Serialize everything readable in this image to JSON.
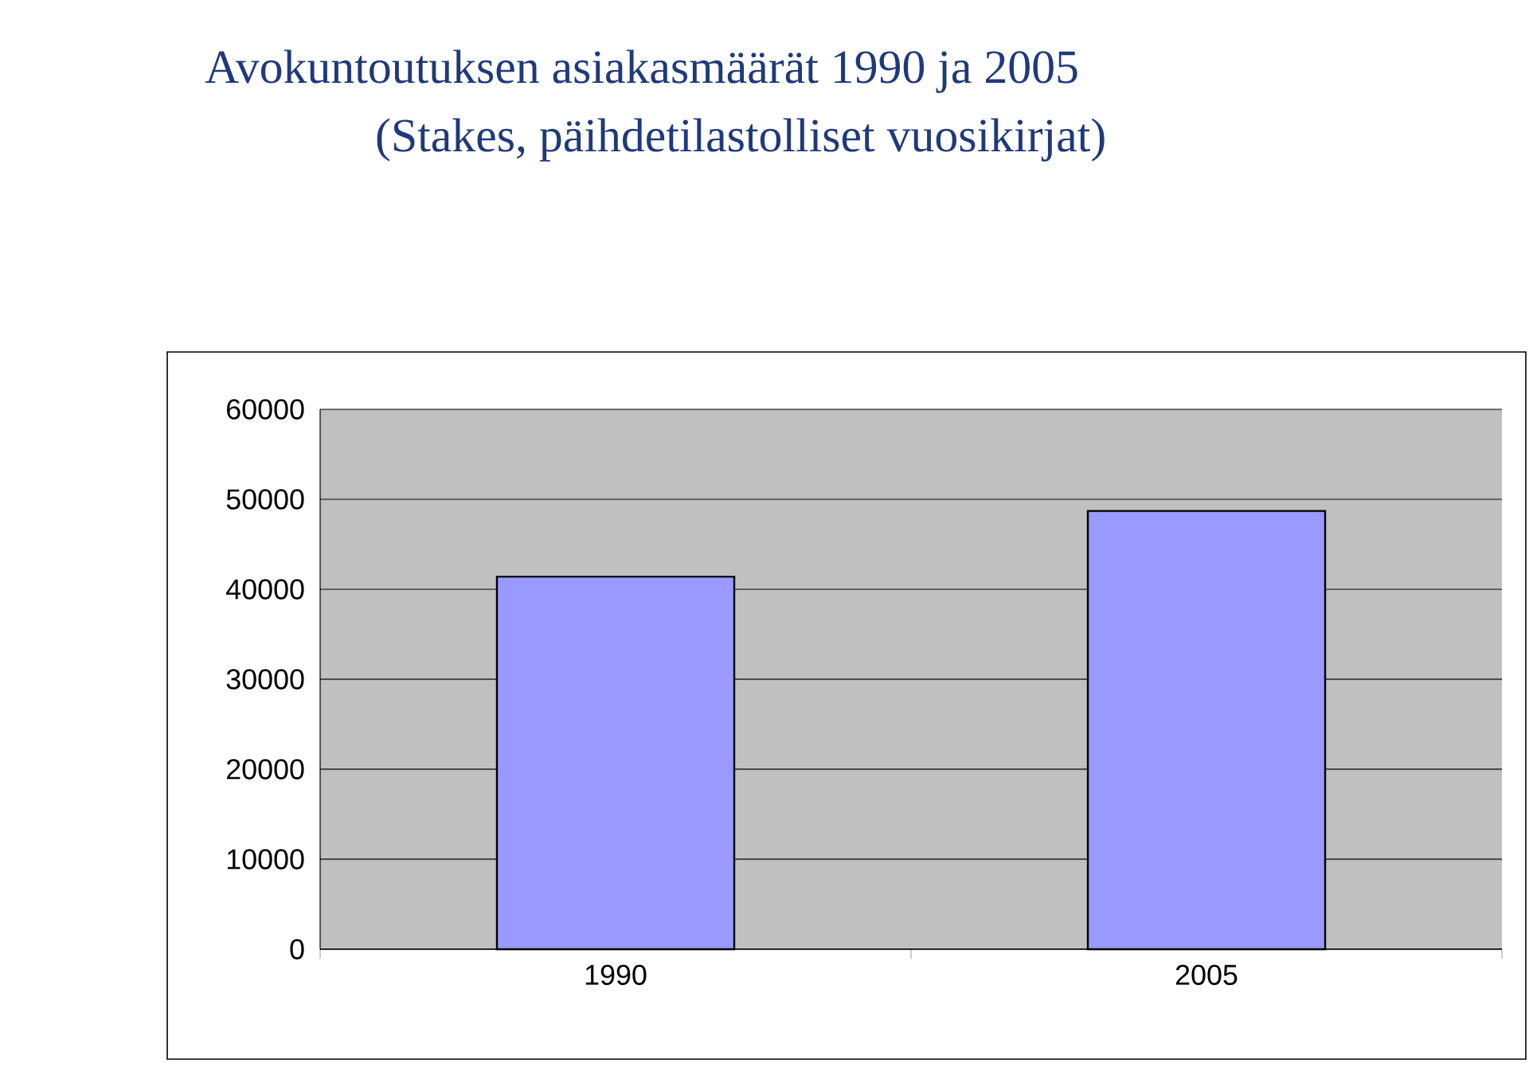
{
  "chart_data": {
    "type": "bar",
    "title": "Avokuntoutuksen asiakasmäärät 1990 ja 2005",
    "subtitle": "(Stakes, päihdetilastolliset vuosikirjat)",
    "categories": [
      "1990",
      "2005"
    ],
    "values": [
      41400,
      48700
    ],
    "color": "#9999ff",
    "ylim": [
      0,
      60000
    ],
    "yticks": [
      0,
      10000,
      20000,
      30000,
      40000,
      50000,
      60000
    ],
    "grid": "y"
  }
}
